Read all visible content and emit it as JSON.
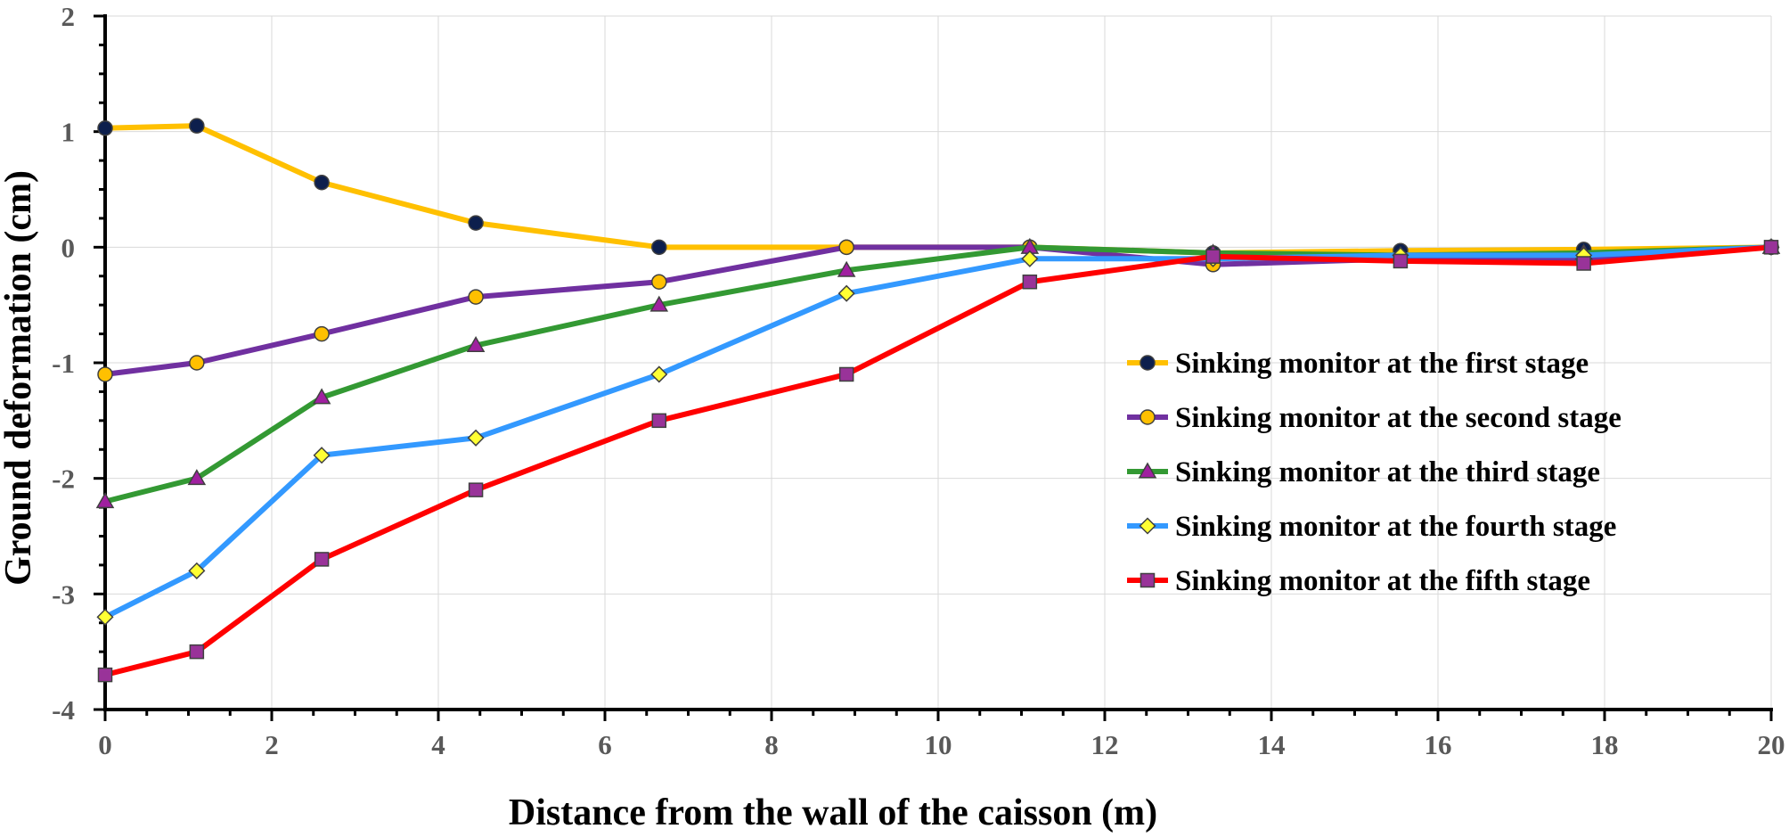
{
  "chart_data": {
    "type": "line",
    "title": "",
    "xlabel": "Distance from the wall of the caisson (m)",
    "ylabel": "Ground deformation (cm)",
    "xlim": [
      0,
      20
    ],
    "ylim": [
      -4,
      2
    ],
    "xticks": [
      0,
      2,
      4,
      6,
      8,
      10,
      12,
      14,
      16,
      18,
      20
    ],
    "yticks": [
      -4,
      -3,
      -2,
      -1,
      0,
      1,
      2
    ],
    "grid": true,
    "legend_position": "right",
    "series": [
      {
        "name": "Sinking monitor at the first stage",
        "line_color": "#FFC000",
        "marker": "circle",
        "marker_fill": "#0D1F4D",
        "x": [
          0,
          1.1,
          2.6,
          4.45,
          6.65,
          8.9,
          11.1,
          13.3,
          15.55,
          17.75,
          20
        ],
        "y": [
          1.03,
          1.05,
          0.56,
          0.21,
          0.0,
          0.0,
          0.0,
          -0.05,
          -0.03,
          -0.02,
          0.0
        ]
      },
      {
        "name": "Sinking monitor at the second stage",
        "line_color": "#7030A0",
        "marker": "circle",
        "marker_fill": "#FFC000",
        "x": [
          0,
          1.1,
          2.6,
          4.45,
          6.65,
          8.9,
          11.1,
          13.3,
          15.55,
          17.75,
          20
        ],
        "y": [
          -1.1,
          -1.0,
          -0.75,
          -0.43,
          -0.3,
          0.0,
          0.0,
          -0.15,
          -0.1,
          -0.1,
          0.0
        ]
      },
      {
        "name": "Sinking monitor at the third stage",
        "line_color": "#339933",
        "marker": "triangle",
        "marker_fill": "#A020A0",
        "x": [
          0,
          1.1,
          2.6,
          4.45,
          6.65,
          8.9,
          11.1,
          13.3,
          15.55,
          17.75,
          20
        ],
        "y": [
          -2.2,
          -2.0,
          -1.3,
          -0.85,
          -0.5,
          -0.2,
          0.0,
          -0.05,
          -0.07,
          -0.05,
          0.0
        ]
      },
      {
        "name": "Sinking monitor at the fourth stage",
        "line_color": "#3399FF",
        "marker": "diamond",
        "marker_fill": "#FFFF33",
        "x": [
          0,
          1.1,
          2.6,
          4.45,
          6.65,
          8.9,
          11.1,
          13.3,
          15.55,
          17.75,
          20
        ],
        "y": [
          -3.2,
          -2.8,
          -1.8,
          -1.65,
          -1.1,
          -0.4,
          -0.1,
          -0.1,
          -0.07,
          -0.07,
          0.0
        ]
      },
      {
        "name": "Sinking monitor at the fifth stage",
        "line_color": "#FF0000",
        "marker": "square",
        "marker_fill": "#993399",
        "x": [
          0,
          1.1,
          2.6,
          4.45,
          6.65,
          8.9,
          11.1,
          13.3,
          15.55,
          17.75,
          20
        ],
        "y": [
          -3.7,
          -3.5,
          -2.7,
          -2.1,
          -1.5,
          -1.1,
          -0.3,
          -0.08,
          -0.12,
          -0.14,
          0.0
        ]
      }
    ]
  }
}
